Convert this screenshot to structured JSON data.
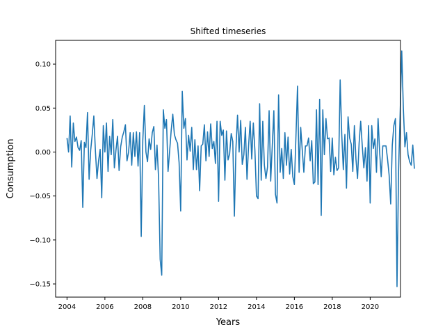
{
  "chart_data": {
    "type": "line",
    "title": "Shifted timeseries",
    "xlabel": "Years",
    "ylabel": "Consumption",
    "xlim": [
      2003.4,
      2021.6
    ],
    "ylim": [
      -0.165,
      0.127
    ],
    "xticks": [
      2004,
      2006,
      2008,
      2010,
      2012,
      2014,
      2016,
      2018,
      2020
    ],
    "xtick_labels": [
      "2004",
      "2006",
      "2008",
      "2010",
      "2012",
      "2014",
      "2016",
      "2018",
      "2020"
    ],
    "yticks": [
      0.1,
      0.05,
      0.0,
      -0.05,
      -0.1,
      -0.15
    ],
    "ytick_labels": [
      "0.10",
      "0.05",
      "0.00",
      "−0.05",
      "−0.10",
      "−0.15"
    ],
    "grid": false,
    "color": "#1f77b4",
    "series": [
      {
        "x_start": 2004.0,
        "x_step": 0.08333,
        "values": [
          0.016,
          0.0,
          0.041,
          -0.017,
          0.033,
          0.012,
          0.017,
          0.005,
          0.002,
          0.013,
          -0.063,
          0.011,
          0.005,
          0.045,
          -0.031,
          0.002,
          0.02,
          0.041,
          0.001,
          -0.03,
          -0.01,
          0.003,
          -0.052,
          0.03,
          0.0,
          0.033,
          -0.022,
          0.018,
          -0.003,
          0.037,
          -0.018,
          0.002,
          0.018,
          -0.021,
          0.006,
          0.017,
          0.023,
          0.031,
          -0.01,
          0.0,
          0.022,
          -0.015,
          0.022,
          -0.005,
          0.023,
          -0.016,
          0.022,
          -0.096,
          0.013,
          0.053,
          0.0,
          -0.011,
          0.015,
          0.003,
          0.022,
          0.029,
          -0.02,
          0.008,
          -0.03,
          -0.122,
          -0.14,
          0.048,
          0.027,
          0.037,
          -0.022,
          0.001,
          0.025,
          0.043,
          0.02,
          0.014,
          0.01,
          -0.012,
          -0.067,
          0.069,
          0.027,
          0.038,
          -0.009,
          0.019,
          0.001,
          0.028,
          -0.02,
          0.014,
          -0.02,
          0.007,
          -0.044,
          0.007,
          0.009,
          0.031,
          -0.01,
          0.023,
          -0.005,
          0.032,
          0.004,
          0.012,
          -0.013,
          0.035,
          -0.056,
          0.035,
          0.019,
          0.025,
          -0.032,
          0.024,
          -0.009,
          -0.002,
          0.021,
          0.012,
          -0.073,
          0.004,
          0.042,
          0.0,
          0.036,
          -0.014,
          -0.003,
          0.028,
          -0.031,
          0.007,
          0.035,
          -0.008,
          0.033,
          0.002,
          -0.05,
          -0.053,
          0.055,
          -0.032,
          0.035,
          -0.015,
          -0.03,
          -0.017,
          0.047,
          -0.033,
          0.007,
          0.047,
          -0.048,
          -0.058,
          0.065,
          -0.023,
          0.004,
          -0.03,
          0.022,
          -0.015,
          0.017,
          -0.025,
          0.003,
          -0.028,
          -0.037,
          0.018,
          0.075,
          -0.023,
          0.028,
          0.002,
          -0.023,
          0.007,
          0.007,
          0.016,
          -0.01,
          0.013,
          -0.036,
          -0.034,
          0.048,
          -0.037,
          0.06,
          -0.072,
          0.048,
          -0.003,
          0.038,
          0.015,
          0.016,
          -0.022,
          0.016,
          -0.026,
          -0.006,
          -0.021,
          -0.018,
          0.082,
          0.02,
          -0.02,
          0.02,
          -0.041,
          0.04,
          0.016,
          0.009,
          -0.022,
          0.03,
          -0.008,
          -0.03,
          0.01,
          0.035,
          0.007,
          -0.018,
          0.005,
          -0.033,
          0.03,
          -0.058,
          0.03,
          0.004,
          0.015,
          -0.023,
          0.038,
          0.0,
          -0.028,
          0.007,
          0.007,
          0.007,
          -0.008,
          -0.026,
          -0.059,
          0.008,
          0.03,
          0.038,
          -0.153,
          -0.02,
          0.045,
          0.115,
          0.05,
          0.006,
          0.022,
          -0.003,
          -0.011,
          -0.015,
          0.008,
          -0.019
        ]
      }
    ]
  }
}
